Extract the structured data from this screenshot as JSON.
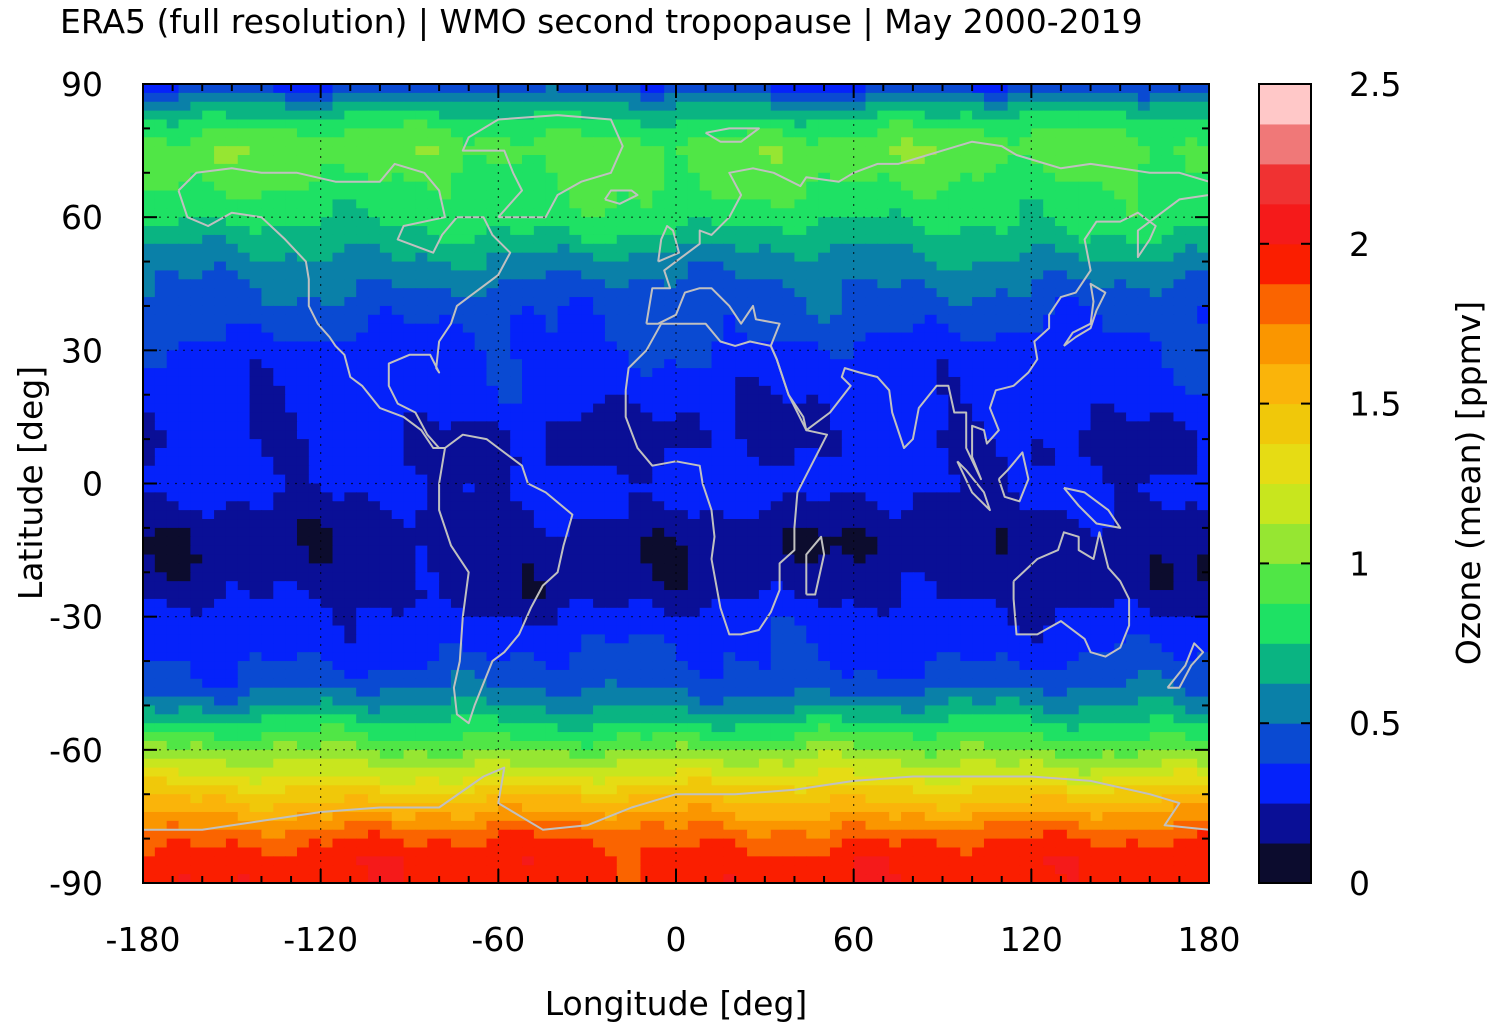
{
  "chart_data": {
    "type": "heatmap",
    "title": "ERA5 (full resolution) | WMO second tropopause | May 2000-2019",
    "xlabel": "Longitude [deg]",
    "ylabel": "Latitude [deg]",
    "colorbar_label": "Ozone (mean) [ppmv]",
    "xlim": [
      -180,
      180
    ],
    "ylim": [
      -90,
      90
    ],
    "xticks": [
      "-180",
      "-120",
      "-60",
      "0",
      "60",
      "120",
      "180"
    ],
    "yticks": [
      "-90",
      "-60",
      "-30",
      "0",
      "30",
      "60",
      "90"
    ],
    "colorbar_ticks": [
      "0",
      "0.5",
      "1",
      "1.5",
      "2",
      "2.5"
    ],
    "colorbar_range": [
      0,
      2.5
    ],
    "colorbar_levels": [
      {
        "from": 0.0,
        "to": 0.125,
        "color": "#0c0c2e"
      },
      {
        "from": 0.125,
        "to": 0.25,
        "color": "#0a0f96"
      },
      {
        "from": 0.25,
        "to": 0.375,
        "color": "#0522fa"
      },
      {
        "from": 0.375,
        "to": 0.5,
        "color": "#0a4ad2"
      },
      {
        "from": 0.5,
        "to": 0.625,
        "color": "#0a80a8"
      },
      {
        "from": 0.625,
        "to": 0.75,
        "color": "#0ab482"
      },
      {
        "from": 0.75,
        "to": 0.875,
        "color": "#1ee164"
      },
      {
        "from": 0.875,
        "to": 1.0,
        "color": "#50e646"
      },
      {
        "from": 1.0,
        "to": 1.125,
        "color": "#96e632"
      },
      {
        "from": 1.125,
        "to": 1.25,
        "color": "#c8e61e"
      },
      {
        "from": 1.25,
        "to": 1.375,
        "color": "#e6dc14"
      },
      {
        "from": 1.375,
        "to": 1.5,
        "color": "#f0c80a"
      },
      {
        "from": 1.5,
        "to": 1.625,
        "color": "#fab40a"
      },
      {
        "from": 1.625,
        "to": 1.75,
        "color": "#fa9600"
      },
      {
        "from": 1.75,
        "to": 1.875,
        "color": "#fa6400"
      },
      {
        "from": 1.875,
        "to": 2.0,
        "color": "#fa1e00"
      },
      {
        "from": 2.0,
        "to": 2.125,
        "color": "#f51a1a"
      },
      {
        "from": 2.125,
        "to": 2.25,
        "color": "#f03232"
      },
      {
        "from": 2.25,
        "to": 2.375,
        "color": "#f07878"
      },
      {
        "from": 2.375,
        "to": 2.5,
        "color": "#ffc8c8"
      }
    ],
    "zonal_mean_profile": {
      "latitude": [
        90,
        85,
        80,
        75,
        70,
        65,
        60,
        55,
        50,
        45,
        40,
        35,
        30,
        25,
        20,
        15,
        10,
        5,
        0,
        -5,
        -10,
        -15,
        -20,
        -25,
        -30,
        -35,
        -40,
        -45,
        -50,
        -55,
        -60,
        -65,
        -70,
        -75,
        -80,
        -85,
        -90
      ],
      "ozone_ppmv": [
        0.35,
        0.65,
        0.85,
        0.95,
        0.9,
        0.85,
        0.8,
        0.7,
        0.58,
        0.5,
        0.43,
        0.4,
        0.34,
        0.32,
        0.3,
        0.26,
        0.23,
        0.25,
        0.3,
        0.25,
        0.18,
        0.16,
        0.17,
        0.2,
        0.3,
        0.33,
        0.38,
        0.45,
        0.6,
        0.8,
        1.0,
        1.2,
        1.45,
        1.65,
        1.85,
        1.95,
        1.95
      ]
    },
    "grid": true,
    "coastlines": true,
    "coastline_color": "#c0c0c0"
  }
}
